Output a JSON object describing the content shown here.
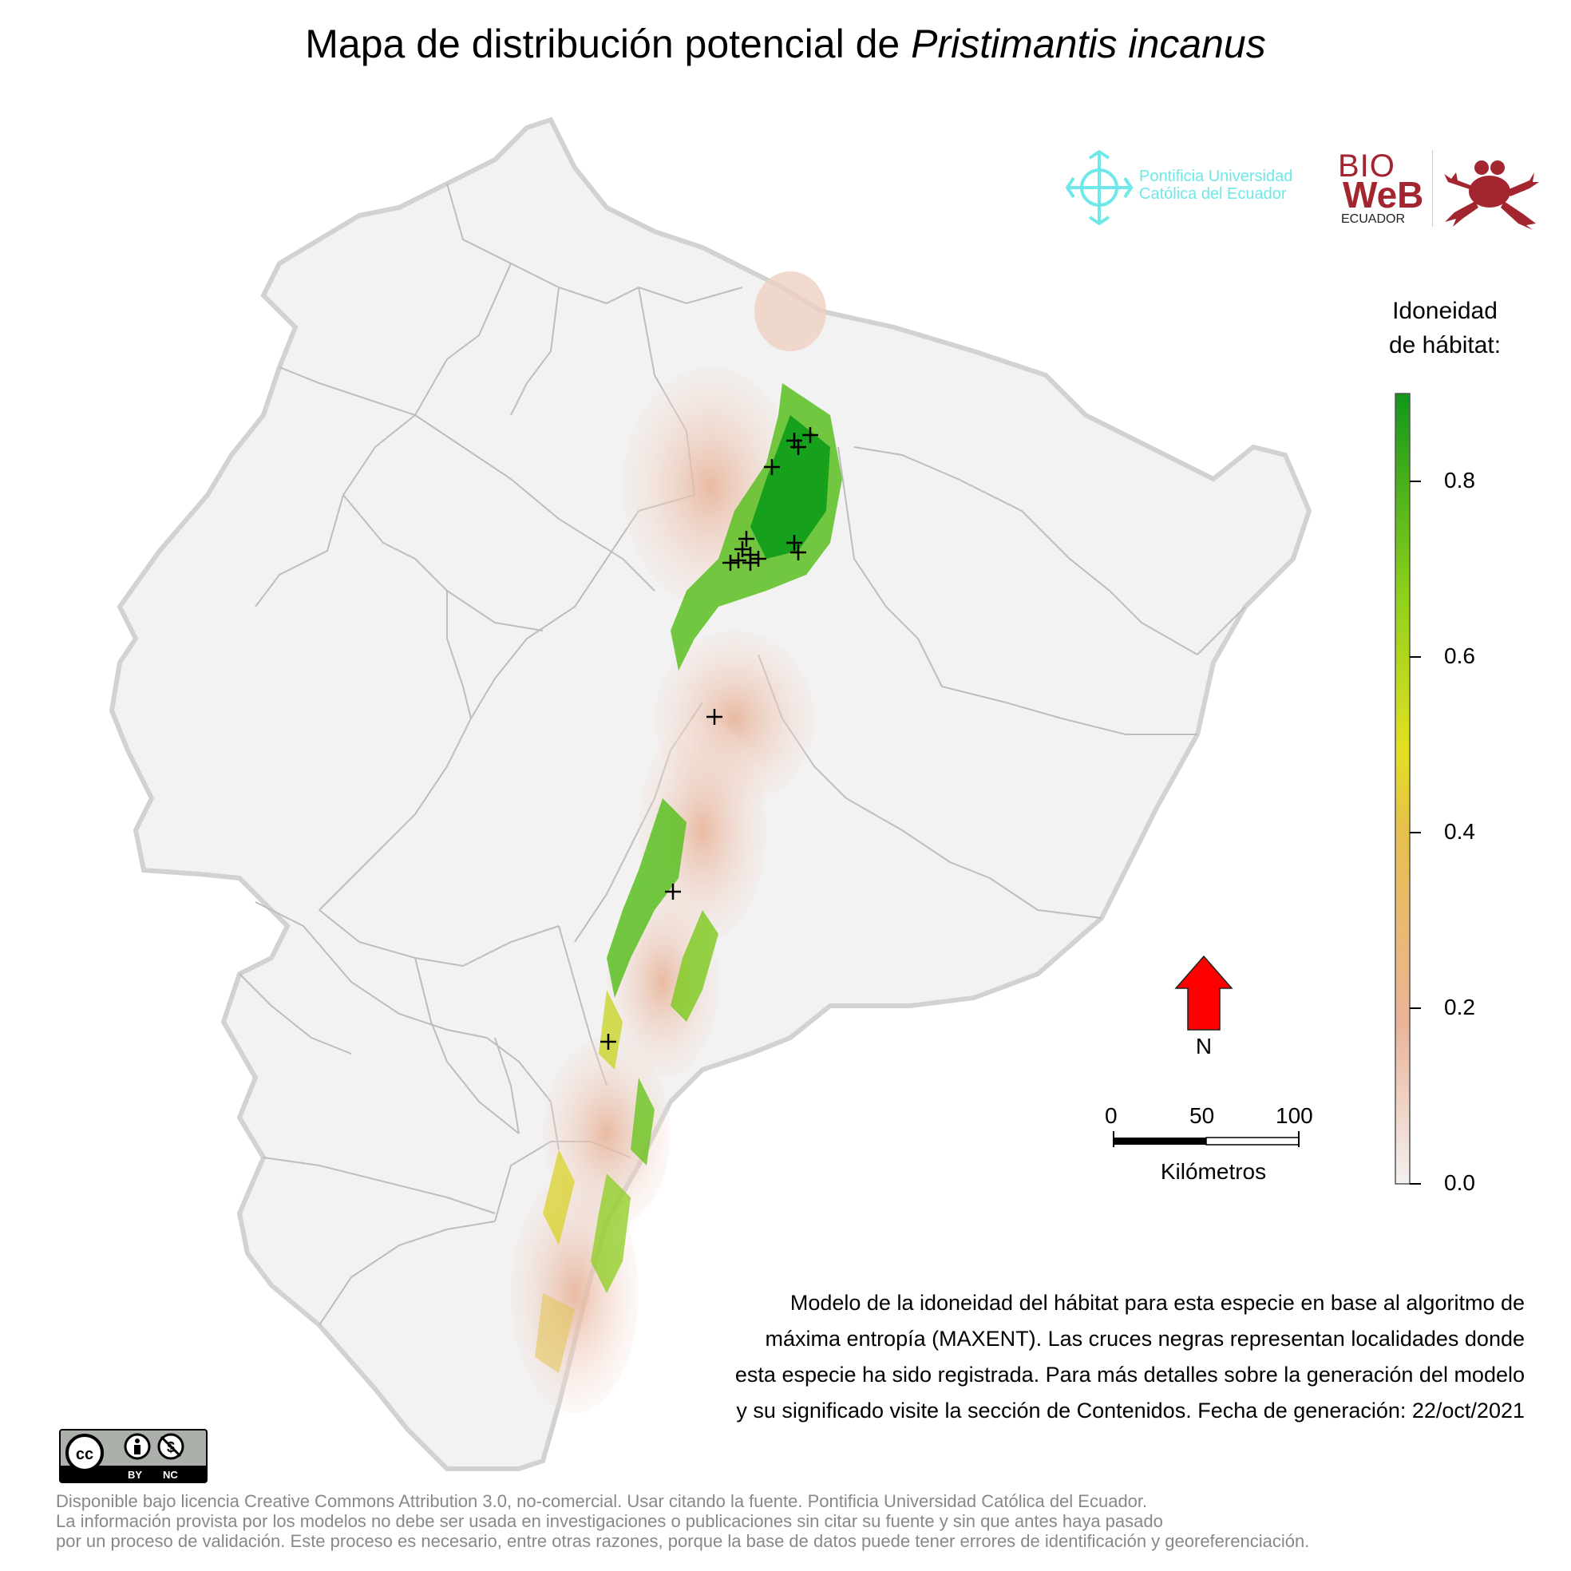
{
  "header": {
    "title_prefix": "Mapa de distribución potencial de",
    "title_species": "Pristimantis incanus"
  },
  "logos": {
    "puce": {
      "line1": "Pontificia Universidad",
      "line2": "Católica del Ecuador",
      "icon": "puce-cross-icon",
      "color": "#6ee8e8"
    },
    "bioweb": {
      "bio": "BIO",
      "web": "WeB",
      "ecuador": "ECUADOR",
      "icon": "frog-icon",
      "color": "#a3252f"
    }
  },
  "legend": {
    "title_line1": "Idoneidad",
    "title_line2": "de hábitat:",
    "ticks": [
      "0.8",
      "0.6",
      "0.4",
      "0.2",
      "0.0"
    ],
    "colors": [
      "#f4f1f0",
      "#eab49a",
      "#e6c04a",
      "#e3e021",
      "#8cd01a",
      "#11961a"
    ]
  },
  "north_arrow": {
    "label": "N",
    "color": "#ff0000",
    "icon": "north-arrow-icon"
  },
  "scale_bar": {
    "labels": [
      "0",
      "50",
      "100"
    ],
    "unit": "Kilómetros"
  },
  "note": {
    "line1": "Modelo de la idoneidad del hábitat para esta especie en base al algoritmo de",
    "line2": "máxima entropía (MAXENT). Las cruces negras representan localidades donde",
    "line3": "esta especie ha sido registrada. Para más detalles sobre la generación del modelo",
    "line4": "y su significado visite la sección de Contenidos. Fecha de generación: 22/oct/2021"
  },
  "license": {
    "badge": "cc-by-nc-icon",
    "by": "BY",
    "nc": "NC",
    "line1": "Disponible bajo licencia Creative Commons Attribution 3.0, no-comercial. Usar citando la fuente. Pontificia Universidad Católica del Ecuador.",
    "line2": "La información provista por los modelos no debe ser usada en investigaciones o publicaciones sin citar su fuente y sin que antes haya pasado",
    "line3": "por un proceso de validación. Este proceso es necesario, entre otras razones, porque la base de datos puede tener errores de identificación y georeferenciación."
  },
  "map": {
    "land_color": "#f2f2f2",
    "border_color": "#bdbdbd",
    "record_marker": "black-cross",
    "record_count": 19
  }
}
